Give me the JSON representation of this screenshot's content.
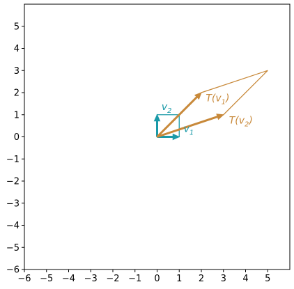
{
  "chart_data": {
    "type": "vector-plot",
    "xlim": [
      -6,
      6
    ],
    "ylim": [
      -6,
      6
    ],
    "x_ticks": [
      -6,
      -5,
      -4,
      -3,
      -2,
      -1,
      0,
      1,
      2,
      3,
      4,
      5
    ],
    "y_ticks": [
      -6,
      -5,
      -4,
      -3,
      -2,
      -1,
      0,
      1,
      2,
      3,
      4,
      5
    ],
    "x_tick_labels": [
      "−6",
      "−5",
      "−4",
      "−3",
      "−2",
      "−1",
      "0",
      "1",
      "2",
      "3",
      "4",
      "5"
    ],
    "y_tick_labels": [
      "−6",
      "−5",
      "−4",
      "−3",
      "−2",
      "−1",
      "0",
      "1",
      "2",
      "3",
      "4",
      "5"
    ],
    "grid": false,
    "colors": {
      "original": "#1a9aa8",
      "transformed": "#c8893a"
    },
    "vectors": [
      {
        "name": "v1",
        "from": [
          0,
          0
        ],
        "to": [
          1,
          0
        ],
        "color": "#1a9aa8"
      },
      {
        "name": "v2",
        "from": [
          0,
          0
        ],
        "to": [
          0,
          1
        ],
        "color": "#1a9aa8"
      },
      {
        "name": "T(v1)",
        "from": [
          0,
          0
        ],
        "to": [
          2,
          2
        ],
        "color": "#c8893a"
      },
      {
        "name": "T(v2)",
        "from": [
          0,
          0
        ],
        "to": [
          3,
          1
        ],
        "color": "#c8893a"
      }
    ],
    "unit_square": [
      [
        0,
        0
      ],
      [
        1,
        0
      ],
      [
        1,
        1
      ],
      [
        0,
        1
      ]
    ],
    "transformed_parallelogram": [
      [
        0,
        0
      ],
      [
        3,
        1
      ],
      [
        5,
        3
      ],
      [
        2,
        2
      ]
    ],
    "labels": [
      {
        "text": "v",
        "sub": "1",
        "at": [
          1.2,
          0.22
        ],
        "color": "#1a9aa8"
      },
      {
        "text": "v",
        "sub": "2",
        "at": [
          0.2,
          1.22
        ],
        "color": "#1a9aa8"
      },
      {
        "text": "T(v",
        "sub": "1",
        "tail": ")",
        "at": [
          2.2,
          1.6
        ],
        "color": "#c8893a"
      },
      {
        "text": "T(v",
        "sub": "2",
        "tail": ")",
        "at": [
          3.25,
          0.6
        ],
        "color": "#c8893a"
      }
    ]
  }
}
